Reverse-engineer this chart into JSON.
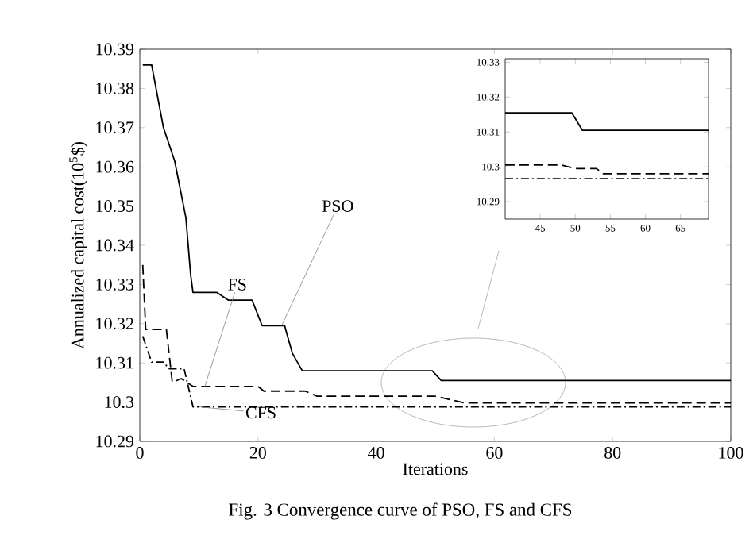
{
  "chart_data": [
    {
      "type": "line",
      "xlabel": "Iterations",
      "ylabel": "Annualized capital cost(10$^{5}$$)",
      "xlim": [
        0,
        100
      ],
      "ylim": [
        10.29,
        10.39
      ],
      "xticks": [
        0,
        20,
        40,
        60,
        80,
        100
      ],
      "yticks": [
        10.29,
        10.3,
        10.31,
        10.32,
        10.33,
        10.34,
        10.35,
        10.36,
        10.37,
        10.38,
        10.39
      ],
      "series": [
        {
          "color": "#000000",
          "line_style": "solid",
          "x": [
            0.5,
            2,
            4,
            5.9,
            7.8,
            8.6,
            9,
            13,
            15,
            19,
            20.7,
            24.5,
            25.8,
            27.5,
            49.5,
            51,
            100
          ],
          "values": [
            10.386,
            10.386,
            10.37,
            10.3615,
            10.347,
            10.3325,
            10.328,
            10.328,
            10.326,
            10.326,
            10.3195,
            10.3195,
            10.3125,
            10.308,
            10.308,
            10.3055,
            10.3055
          ]
        },
        {
          "color": "#000000",
          "line_style": "dashed",
          "x": [
            0.5,
            1,
            4.5,
            5.5,
            7,
            9,
            20,
            21,
            28,
            30,
            50,
            55,
            100
          ],
          "values": [
            10.335,
            10.3185,
            10.3185,
            10.305,
            10.306,
            10.304,
            10.304,
            10.3028,
            10.3028,
            10.3015,
            10.3015,
            10.2998,
            10.2998
          ]
        },
        {
          "color": "#000000",
          "line_style": "dashdot",
          "x": [
            0.5,
            2,
            4,
            5,
            7.5,
            9,
            100
          ],
          "values": [
            10.3168,
            10.3102,
            10.3102,
            10.3085,
            10.3085,
            10.2988,
            10.2988
          ]
        }
      ],
      "annotations": [
        {
          "text": "PSO",
          "x": 24,
          "y": 10.3195
        },
        {
          "text": "FS",
          "x": 11,
          "y": 10.304
        },
        {
          "text": "CFS",
          "x": 10,
          "y": 10.2988
        },
        "Fig. 3 Convergence curve of PSO, FS and CFS"
      ]
    },
    {
      "type": "line",
      "xlim": [
        40,
        69
      ],
      "ylim": [
        10.285,
        10.331
      ],
      "xticks": [
        45,
        50,
        55,
        60,
        65
      ],
      "yticks": [
        10.29,
        10.3,
        10.31,
        10.32,
        10.33
      ],
      "series": [
        {
          "color": "#000000",
          "line_style": "solid",
          "x": [
            40,
            49.5,
            51,
            69
          ],
          "values": [
            10.3155,
            10.3155,
            10.3105,
            10.3105
          ]
        },
        {
          "color": "#000000",
          "line_style": "dashed",
          "x": [
            40,
            48,
            50,
            53,
            54,
            69
          ],
          "values": [
            10.3005,
            10.3005,
            10.2995,
            10.2995,
            10.298,
            10.298
          ]
        },
        {
          "color": "#000000",
          "line_style": "dashdot",
          "x": [
            40,
            69
          ],
          "values": [
            10.2966,
            10.2966
          ]
        }
      ]
    }
  ]
}
